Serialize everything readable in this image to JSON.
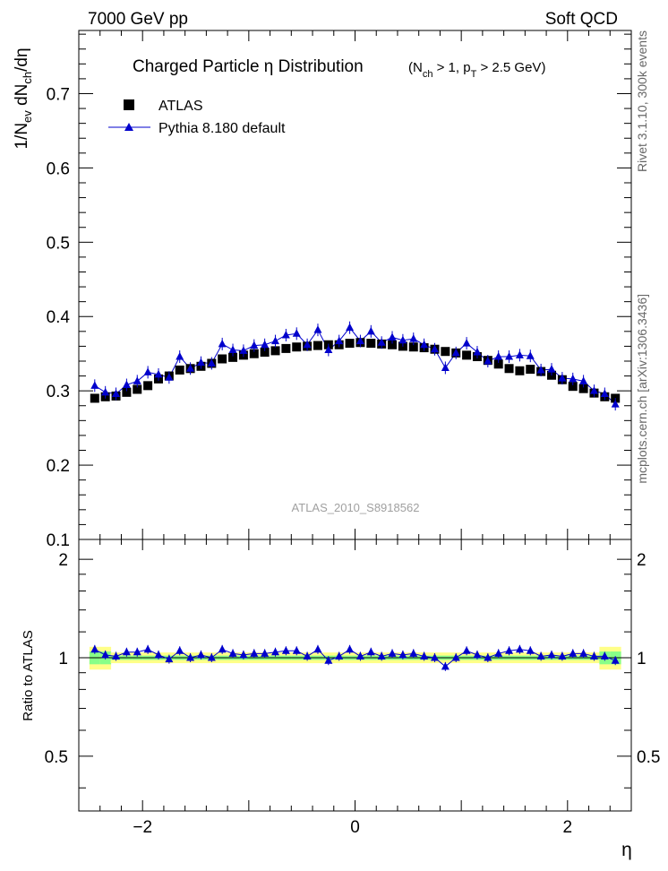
{
  "header": {
    "left": "7000 GeV pp",
    "right": "Soft QCD"
  },
  "side_labels": {
    "rivet": "Rivet 3.1.10,  300k events",
    "mcplots": "mcplots.cern.ch [arXiv:1306.3436]"
  },
  "chart_data": {
    "type": "scatter",
    "title": "Charged Particle  η Distribution",
    "cuts": "(N_ch > 1, p_T > 2.5 GeV)",
    "analysis_id": "ATLAS_2010_S8918562",
    "xlabel": "η",
    "ylabel": "1/N_ev dN_ch/dη",
    "ratio_ylabel": "Ratio to ATLAS",
    "xlim": [
      -2.6,
      2.6
    ],
    "ylim": [
      0.1,
      0.785
    ],
    "ratio_ylim": [
      0.34,
      2.3
    ],
    "x_ticks": [
      -2,
      0,
      2
    ],
    "x_tick_labels": [
      "−2",
      "0",
      "2"
    ],
    "y_ticks": [
      0.1,
      0.2,
      0.3,
      0.4,
      0.5,
      0.6,
      0.7
    ],
    "y_tick_labels": [
      "0.1",
      "0.2",
      "0.3",
      "0.4",
      "0.5",
      "0.6",
      "0.7"
    ],
    "ratio_ticks": [
      0.5,
      1,
      2
    ],
    "ratio_tick_labels": [
      "0.5",
      "1",
      "2"
    ],
    "legend": {
      "position": "top-left",
      "entries": [
        "ATLAS",
        "Pythia 8.180 default"
      ]
    },
    "x": [
      -2.45,
      -2.35,
      -2.25,
      -2.15,
      -2.05,
      -1.95,
      -1.85,
      -1.75,
      -1.65,
      -1.55,
      -1.45,
      -1.35,
      -1.25,
      -1.15,
      -1.05,
      -0.95,
      -0.85,
      -0.75,
      -0.65,
      -0.55,
      -0.45,
      -0.35,
      -0.25,
      -0.15,
      -0.05,
      0.05,
      0.15,
      0.25,
      0.35,
      0.45,
      0.55,
      0.65,
      0.75,
      0.85,
      0.95,
      1.05,
      1.15,
      1.25,
      1.35,
      1.45,
      1.55,
      1.65,
      1.75,
      1.85,
      1.95,
      2.05,
      2.15,
      2.25,
      2.35,
      2.45
    ],
    "series": [
      {
        "name": "ATLAS",
        "marker": "square",
        "color": "#000000",
        "values": [
          0.29,
          0.292,
          0.293,
          0.298,
          0.302,
          0.307,
          0.316,
          0.32,
          0.328,
          0.33,
          0.333,
          0.337,
          0.343,
          0.345,
          0.348,
          0.35,
          0.352,
          0.354,
          0.357,
          0.359,
          0.36,
          0.361,
          0.362,
          0.362,
          0.364,
          0.365,
          0.364,
          0.363,
          0.362,
          0.36,
          0.359,
          0.358,
          0.356,
          0.353,
          0.351,
          0.348,
          0.346,
          0.341,
          0.336,
          0.33,
          0.327,
          0.329,
          0.326,
          0.321,
          0.315,
          0.306,
          0.303,
          0.297,
          0.292,
          0.29
        ]
      },
      {
        "name": "Pythia 8.180 default",
        "marker": "triangle",
        "color": "#0000cc",
        "values": [
          0.307,
          0.298,
          0.296,
          0.308,
          0.313,
          0.325,
          0.322,
          0.318,
          0.346,
          0.33,
          0.338,
          0.337,
          0.363,
          0.355,
          0.354,
          0.361,
          0.362,
          0.367,
          0.375,
          0.377,
          0.362,
          0.382,
          0.355,
          0.367,
          0.385,
          0.367,
          0.38,
          0.365,
          0.372,
          0.368,
          0.37,
          0.362,
          0.356,
          0.331,
          0.351,
          0.364,
          0.352,
          0.34,
          0.346,
          0.346,
          0.348,
          0.347,
          0.328,
          0.329,
          0.317,
          0.316,
          0.313,
          0.3,
          0.296,
          0.282
        ]
      }
    ],
    "ratio_values": [
      1.06,
      1.02,
      1.01,
      1.04,
      1.04,
      1.06,
      1.02,
      0.99,
      1.05,
      1.0,
      1.02,
      1.0,
      1.06,
      1.03,
      1.02,
      1.03,
      1.03,
      1.04,
      1.05,
      1.05,
      1.01,
      1.06,
      0.98,
      1.01,
      1.06,
      1.01,
      1.04,
      1.01,
      1.03,
      1.02,
      1.03,
      1.01,
      1.0,
      0.94,
      1.0,
      1.05,
      1.02,
      1.0,
      1.03,
      1.05,
      1.06,
      1.05,
      1.01,
      1.02,
      1.01,
      1.03,
      1.03,
      1.01,
      1.01,
      0.98
    ]
  }
}
